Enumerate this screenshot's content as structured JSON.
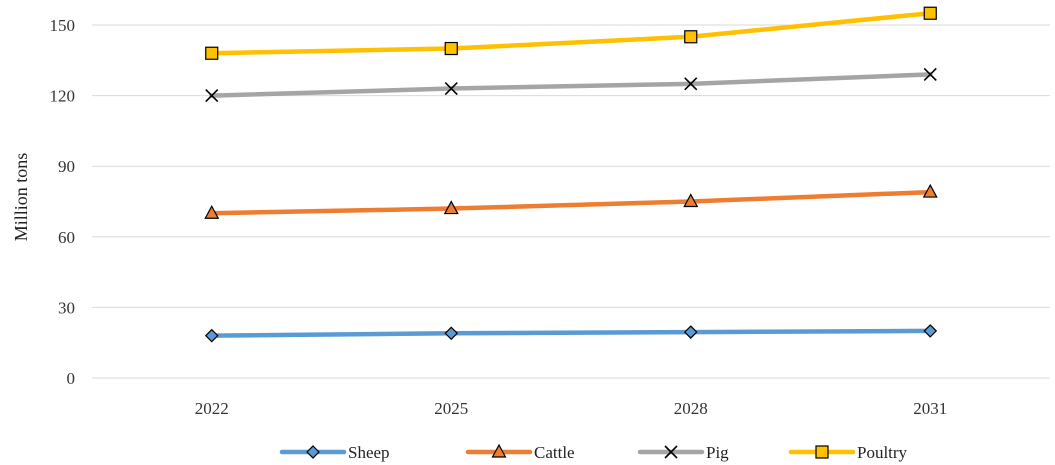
{
  "chart_data": {
    "type": "line",
    "title": "",
    "xlabel": "",
    "ylabel": "Million tons",
    "categories": [
      "2022",
      "2025",
      "2028",
      "2031"
    ],
    "ylim": [
      0,
      150
    ],
    "yticks": [
      0,
      30,
      60,
      90,
      120,
      150
    ],
    "grid": "horizontal",
    "legend_position": "bottom",
    "series": [
      {
        "name": "Sheep",
        "values": [
          18,
          19,
          19.5,
          20
        ],
        "color": "#5B9BD5",
        "marker": "diamond"
      },
      {
        "name": "Cattle",
        "values": [
          70,
          72,
          75,
          79
        ],
        "color": "#ED7D31",
        "marker": "triangle"
      },
      {
        "name": "Pig",
        "values": [
          120,
          123,
          125,
          129
        ],
        "color": "#A5A5A5",
        "marker": "x"
      },
      {
        "name": "Poultry",
        "values": [
          138,
          140,
          145,
          155
        ],
        "color": "#FFC000",
        "marker": "square"
      }
    ]
  }
}
